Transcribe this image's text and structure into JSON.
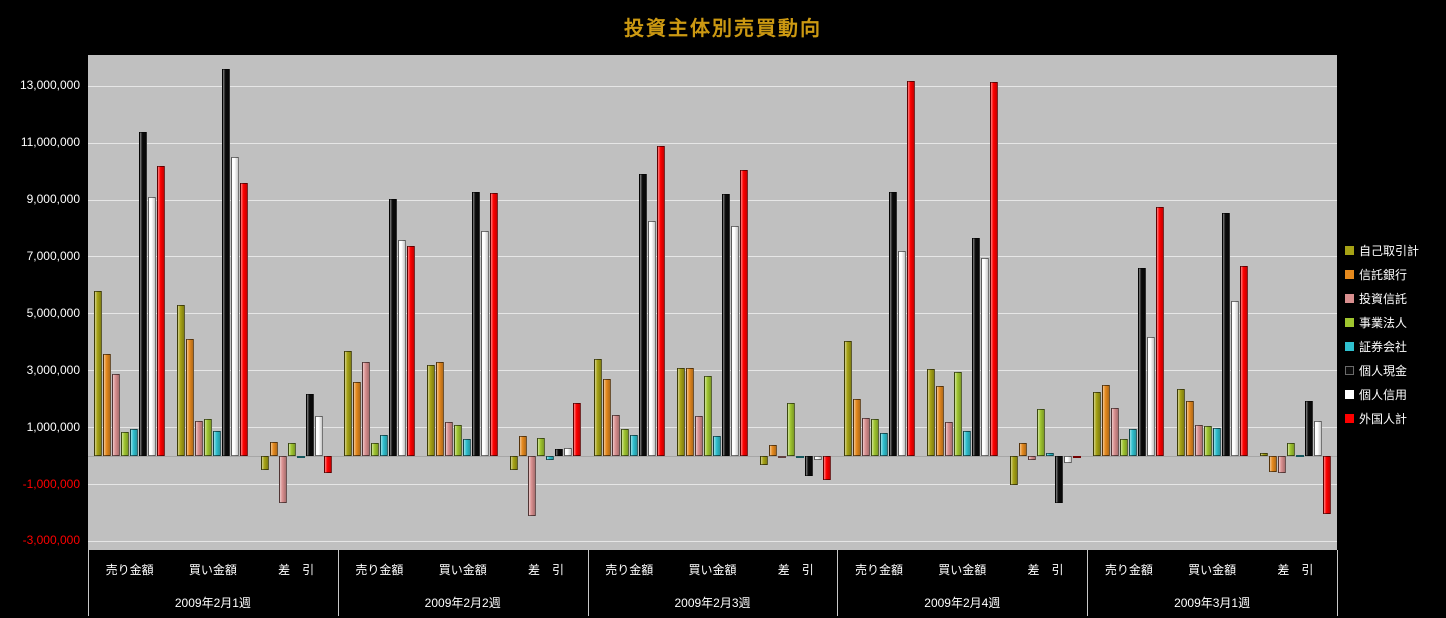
{
  "chart_data": {
    "type": "bar",
    "title": "投資主体別売買動向",
    "weeks": [
      "2009年2月1週",
      "2009年2月2週",
      "2009年2月3週",
      "2009年2月4週",
      "2009年3月1週"
    ],
    "categories": [
      "売り金額",
      "買い金額",
      "差　引"
    ],
    "y_ticks": [
      "13,000,000",
      "11,000,000",
      "9,000,000",
      "7,000,000",
      "5,000,000",
      "3,000,000",
      "1,000,000",
      "-1,000,000",
      "-3,000,000"
    ],
    "ylim": [
      -3300000,
      14100000
    ],
    "gridline_step": 2000000,
    "grid": true,
    "legend_position": "right",
    "value_order_note": "values are per x-slot: week1-sell, week1-buy, week1-net, week2-sell, ... week5-net",
    "series": [
      {
        "key": "proprietary",
        "name": "自己取引計",
        "color": "#A6A215",
        "values": [
          5800000,
          5300000,
          -500000,
          3700000,
          3200000,
          -500000,
          3400000,
          3100000,
          -300000,
          4050000,
          3050000,
          -1000000,
          2250000,
          2350000,
          100000
        ]
      },
      {
        "key": "trust-bank",
        "name": "信託銀行",
        "color": "#E5891D",
        "values": [
          3600000,
          4100000,
          500000,
          2600000,
          3300000,
          700000,
          2700000,
          3100000,
          400000,
          2000000,
          2450000,
          450000,
          2500000,
          1950000,
          -550000
        ]
      },
      {
        "key": "investment-trust",
        "name": "投資信託",
        "color": "#D98F8F",
        "values": [
          2900000,
          1250000,
          -1650000,
          3300000,
          1200000,
          -2100000,
          1450000,
          1400000,
          -50000,
          1350000,
          1200000,
          -150000,
          1700000,
          1100000,
          -600000
        ]
      },
      {
        "key": "business-corp",
        "name": "事業法人",
        "color": "#9FC52F",
        "values": [
          850000,
          1300000,
          450000,
          450000,
          1100000,
          650000,
          950000,
          2800000,
          1850000,
          1300000,
          2950000,
          1650000,
          600000,
          1050000,
          450000
        ]
      },
      {
        "key": "securities-firm",
        "name": "証券会社",
        "color": "#2FC0CE",
        "values": [
          950000,
          900000,
          -50000,
          750000,
          600000,
          -150000,
          750000,
          700000,
          -50000,
          800000,
          900000,
          100000,
          950000,
          1000000,
          50000
        ]
      },
      {
        "key": "individual-cash",
        "name": "個人現金",
        "color": "#0A0A0A",
        "values": [
          11400000,
          13600000,
          2200000,
          9050000,
          9300000,
          250000,
          9900000,
          9200000,
          -700000,
          9300000,
          7650000,
          -1650000,
          6600000,
          8550000,
          1950000
        ]
      },
      {
        "key": "individual-margin",
        "name": "個人信用",
        "color": "#FFFFFF",
        "values": [
          9100000,
          10500000,
          1400000,
          7600000,
          7900000,
          300000,
          8250000,
          8100000,
          -150000,
          7200000,
          6950000,
          -250000,
          4200000,
          5450000,
          1250000
        ]
      },
      {
        "key": "foreign-total",
        "name": "外国人計",
        "color": "#FE0000",
        "values": [
          10200000,
          9600000,
          -600000,
          7400000,
          9250000,
          1850000,
          10900000,
          10050000,
          -850000,
          13200000,
          13150000,
          -50000,
          8750000,
          6700000,
          -2050000
        ]
      }
    ]
  },
  "colors": {
    "background": "#000000",
    "plot_background": "#C0C0C0",
    "title": "#CC9912",
    "axis_text": "#FFFFFF",
    "axis_text_negative": "#FF0000",
    "gridline": "#E6E6E6"
  }
}
